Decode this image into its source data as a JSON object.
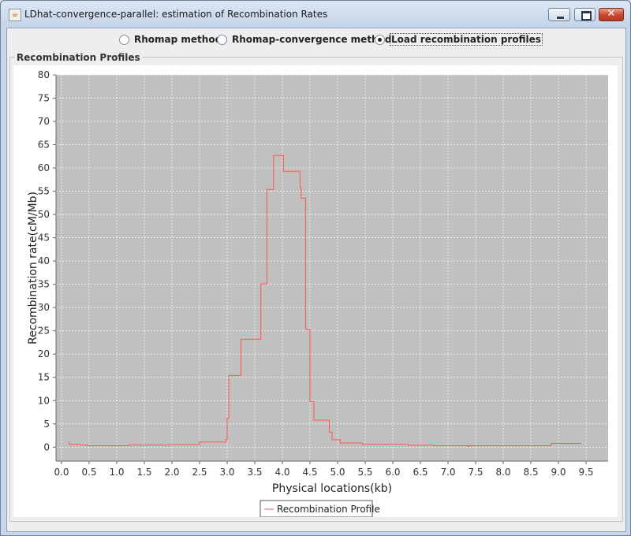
{
  "window": {
    "title": "LDhat-convergence-parallel: estimation of Recombination Rates",
    "app_icon_glyph": "☕",
    "minimize_icon": "minimize-icon",
    "maximize_icon": "maximize-icon",
    "close_icon": "close-icon",
    "close_glyph": "✕"
  },
  "methods": {
    "options": [
      {
        "label": "Rhomap method",
        "checked": false
      },
      {
        "label": "Rhomap-convergence method",
        "checked": false
      },
      {
        "label": "Load recombination profiles",
        "checked": true
      }
    ]
  },
  "panel": {
    "title": "Recombination Profiles"
  },
  "colors": {
    "plot_background": "#c0c0c0",
    "series_line": "#ff5555",
    "gridline": "#ffffff"
  },
  "chart_data": {
    "type": "line",
    "title": "",
    "xlabel": "Physical locations(kb)",
    "ylabel": "Recombination rate(cM/Mb)",
    "xlim": [
      -0.1,
      9.9
    ],
    "ylim": [
      -3,
      80
    ],
    "x_ticks": [
      "0.0",
      "0.5",
      "1.0",
      "1.5",
      "2.0",
      "2.5",
      "3.0",
      "3.5",
      "4.0",
      "4.5",
      "5.0",
      "5.5",
      "6.0",
      "6.5",
      "7.0",
      "7.5",
      "8.0",
      "8.5",
      "9.0",
      "9.5"
    ],
    "x_tick_values": [
      0.0,
      0.5,
      1.0,
      1.5,
      2.0,
      2.5,
      3.0,
      3.5,
      4.0,
      4.5,
      5.0,
      5.5,
      6.0,
      6.5,
      7.0,
      7.5,
      8.0,
      8.5,
      9.0,
      9.5
    ],
    "y_ticks": [
      "0",
      "5",
      "10",
      "15",
      "20",
      "25",
      "30",
      "35",
      "40",
      "45",
      "50",
      "55",
      "60",
      "65",
      "70",
      "75",
      "80"
    ],
    "y_tick_values": [
      0,
      5,
      10,
      15,
      20,
      25,
      30,
      35,
      40,
      45,
      50,
      55,
      60,
      65,
      70,
      75,
      80
    ],
    "grid": true,
    "legend_position": "bottom",
    "series": [
      {
        "name": "Recombination Profile",
        "step": true,
        "points": [
          [
            0.12,
            1.0
          ],
          [
            0.14,
            0.6
          ],
          [
            0.34,
            0.45
          ],
          [
            0.48,
            0.3
          ],
          [
            1.22,
            0.45
          ],
          [
            1.95,
            0.55
          ],
          [
            2.5,
            1.1
          ],
          [
            2.98,
            1.6
          ],
          [
            3.0,
            6.2
          ],
          [
            3.03,
            15.4
          ],
          [
            3.25,
            23.2
          ],
          [
            3.61,
            35.1
          ],
          [
            3.72,
            55.4
          ],
          [
            3.84,
            62.7
          ],
          [
            4.02,
            59.3
          ],
          [
            4.32,
            55.8
          ],
          [
            4.34,
            53.5
          ],
          [
            4.42,
            25.3
          ],
          [
            4.5,
            9.8
          ],
          [
            4.57,
            5.8
          ],
          [
            4.85,
            3.2
          ],
          [
            4.9,
            1.6
          ],
          [
            5.05,
            0.9
          ],
          [
            5.45,
            0.6
          ],
          [
            6.28,
            0.4
          ],
          [
            6.75,
            0.3
          ],
          [
            7.35,
            0.15
          ],
          [
            7.38,
            0.3
          ],
          [
            8.87,
            0.8
          ],
          [
            9.42,
            0.8
          ]
        ]
      }
    ]
  }
}
